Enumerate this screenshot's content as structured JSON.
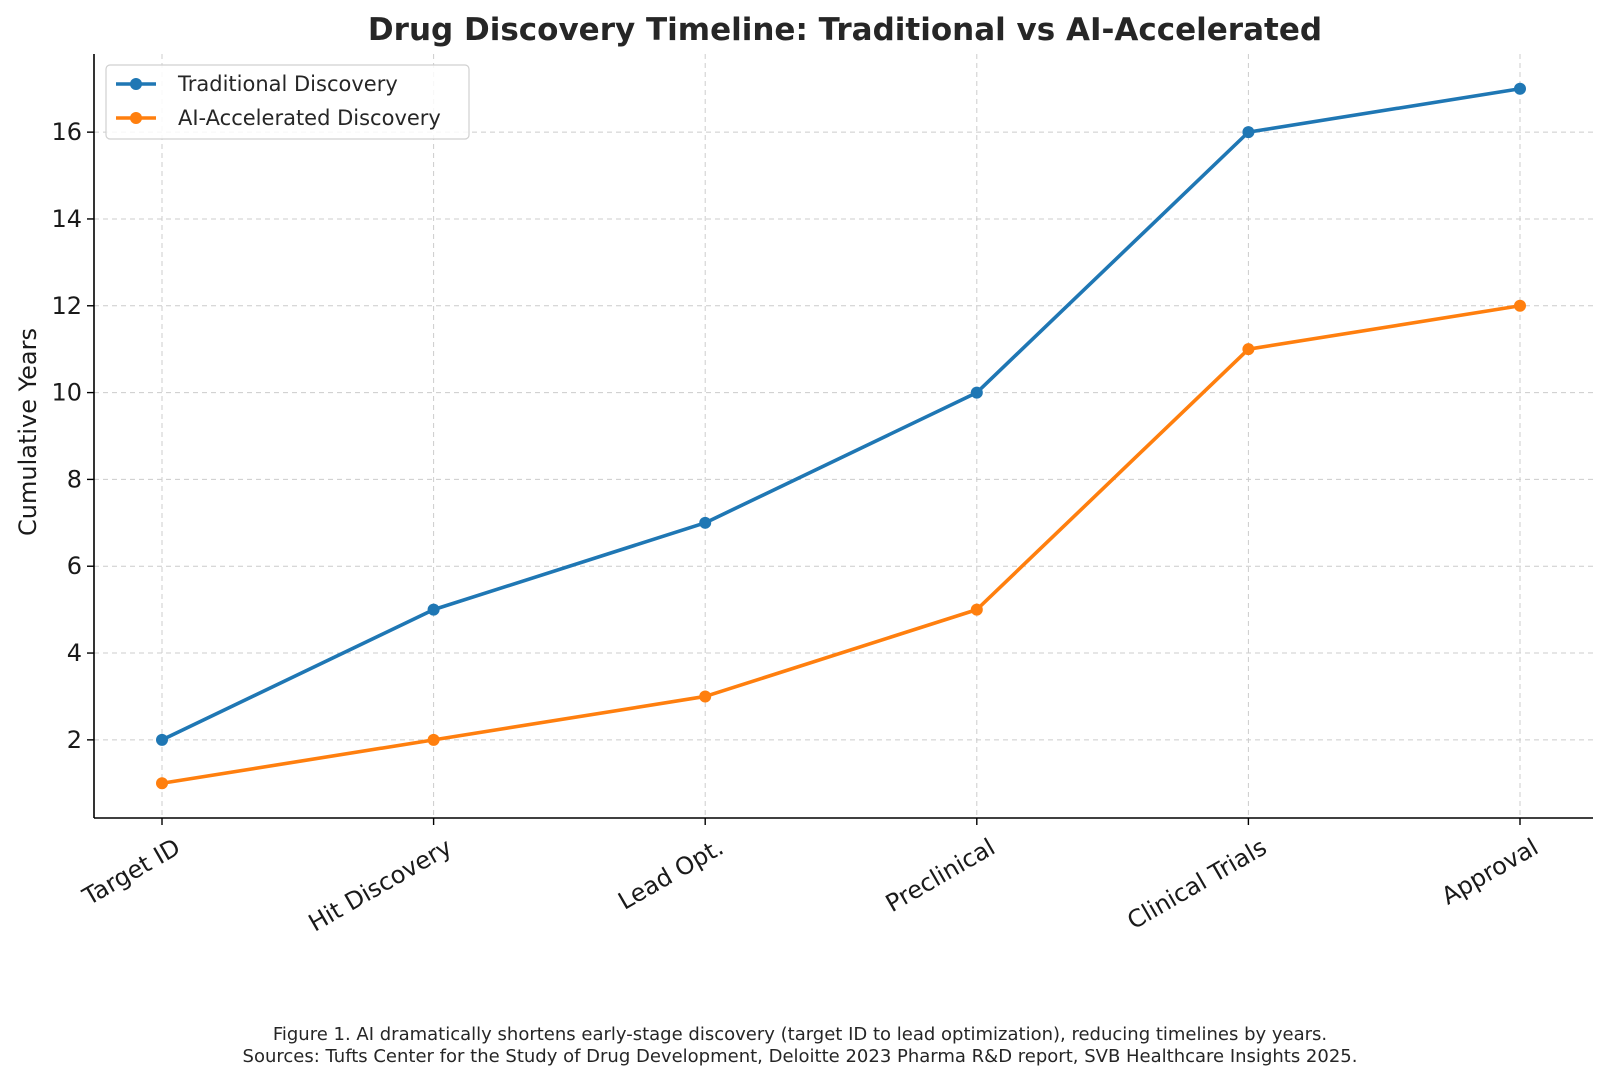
{
  "chart_data": {
    "type": "line",
    "title": "Drug Discovery Timeline: Traditional vs AI-Accelerated",
    "xlabel": "",
    "ylabel": "Cumulative Years",
    "categories": [
      "Target ID",
      "Hit Discovery",
      "Lead Opt.",
      "Preclinical",
      "Clinical Trials",
      "Approval"
    ],
    "series": [
      {
        "name": "Traditional Discovery",
        "color": "#1f77b4",
        "values": [
          2,
          5,
          7,
          10,
          16,
          17
        ]
      },
      {
        "name": "AI-Accelerated Discovery",
        "color": "#ff7f0e",
        "values": [
          1,
          2,
          3,
          5,
          11,
          12
        ]
      }
    ],
    "ylim": [
      0.2,
      17.8
    ],
    "yticks": [
      2,
      4,
      6,
      8,
      10,
      12,
      14,
      16
    ],
    "grid": true,
    "legend_position": "top-left"
  },
  "caption": {
    "line1": "Figure 1. AI dramatically shortens early-stage discovery (target ID to lead optimization), reducing timelines by years.",
    "line2": "Sources: Tufts Center for the Study of Drug Development, Deloitte 2023 Pharma R&D report, SVB Healthcare Insights 2025."
  }
}
